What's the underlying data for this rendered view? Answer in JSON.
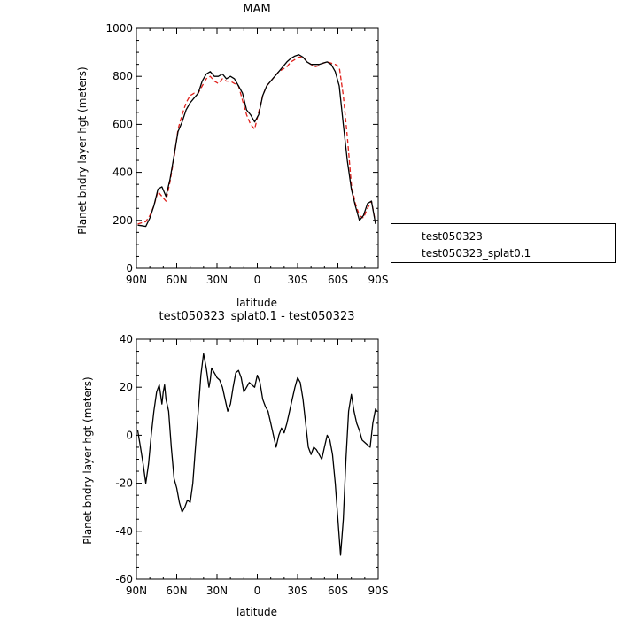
{
  "colors": {
    "red": "#e0201b",
    "black": "#000000"
  },
  "legend": {
    "items": [
      {
        "label": "test050323",
        "color": "#e0201b",
        "dash": true
      },
      {
        "label": "test050323_splat0.1",
        "color": "#000000",
        "dash": false
      }
    ]
  },
  "chart_data": [
    {
      "type": "line",
      "title": "MAM",
      "xlabel": "latitude",
      "ylabel": "Planet bndry layer hgt (meters)",
      "xlim": [
        90,
        -90
      ],
      "ylim": [
        0,
        1000
      ],
      "xticks": [
        90,
        60,
        30,
        0,
        -30,
        -60,
        -90
      ],
      "xtick_labels": [
        "90N",
        "60N",
        "30N",
        "0",
        "30S",
        "60S",
        "90S"
      ],
      "yticks": [
        0,
        200,
        400,
        600,
        800,
        1000
      ],
      "ytick_labels": [
        "0",
        "200",
        "400",
        "600",
        "800",
        "1000"
      ],
      "legend_position": "right",
      "series": [
        {
          "name": "test050323",
          "color": "#e0201b",
          "dash": true,
          "x": [
            89,
            86,
            83,
            80,
            77,
            74,
            71,
            68,
            65,
            62,
            59,
            56,
            53,
            50,
            47,
            44,
            41,
            38,
            35,
            32,
            29,
            26,
            23,
            20,
            17,
            14,
            11,
            8,
            5,
            2,
            -1,
            -4,
            -7,
            -10,
            -13,
            -16,
            -19,
            -22,
            -25,
            -28,
            -31,
            -34,
            -37,
            -40,
            -43,
            -46,
            -49,
            -52,
            -55,
            -58,
            -61,
            -64,
            -67,
            -70,
            -73,
            -76,
            -79,
            -82,
            -85,
            -88
          ],
          "y": [
            185,
            190,
            195,
            220,
            260,
            320,
            300,
            280,
            360,
            460,
            580,
            640,
            690,
            720,
            730,
            730,
            760,
            790,
            800,
            780,
            770,
            790,
            780,
            780,
            770,
            760,
            700,
            640,
            600,
            580,
            650,
            720,
            760,
            780,
            800,
            820,
            830,
            840,
            860,
            870,
            880,
            880,
            860,
            850,
            840,
            845,
            855,
            860,
            855,
            850,
            840,
            720,
            550,
            350,
            270,
            220,
            210,
            250,
            280,
            190
          ]
        },
        {
          "name": "test050323_splat0.1",
          "color": "#000000",
          "dash": false,
          "x": [
            89,
            86,
            83,
            80,
            77,
            74,
            71,
            68,
            65,
            62,
            59,
            56,
            53,
            50,
            47,
            44,
            41,
            38,
            35,
            32,
            29,
            26,
            23,
            20,
            17,
            14,
            11,
            8,
            5,
            2,
            -1,
            -4,
            -7,
            -10,
            -13,
            -16,
            -19,
            -22,
            -25,
            -28,
            -31,
            -34,
            -37,
            -40,
            -43,
            -46,
            -49,
            -52,
            -55,
            -58,
            -61,
            -64,
            -67,
            -70,
            -73,
            -76,
            -79,
            -82,
            -85,
            -88
          ],
          "y": [
            180,
            178,
            175,
            210,
            260,
            330,
            340,
            300,
            370,
            470,
            570,
            610,
            660,
            690,
            710,
            730,
            780,
            810,
            820,
            800,
            800,
            810,
            790,
            800,
            790,
            760,
            730,
            660,
            640,
            610,
            640,
            720,
            760,
            780,
            800,
            820,
            840,
            860,
            875,
            885,
            890,
            880,
            860,
            850,
            850,
            850,
            855,
            860,
            850,
            820,
            760,
            600,
            450,
            330,
            260,
            200,
            220,
            270,
            280,
            185
          ]
        }
      ]
    },
    {
      "type": "line",
      "title": "test050323_splat0.1 - test050323",
      "xlabel": "latitude",
      "ylabel": "Planet bndry layer hgt (meters)",
      "xlim": [
        90,
        -90
      ],
      "ylim": [
        -60,
        40
      ],
      "xticks": [
        90,
        60,
        30,
        0,
        -30,
        -60,
        -90
      ],
      "xtick_labels": [
        "90N",
        "60N",
        "30N",
        "0",
        "30S",
        "60S",
        "90S"
      ],
      "yticks": [
        -60,
        -40,
        -20,
        0,
        20,
        40
      ],
      "ytick_labels": [
        "-60",
        "-40",
        "-20",
        "0",
        "20",
        "40"
      ],
      "series": [
        {
          "color": "#000000",
          "dash": false,
          "x": [
            89,
            87,
            85,
            83,
            81,
            79,
            77,
            75,
            73,
            71,
            70,
            69,
            68,
            66,
            64,
            62,
            60,
            58,
            56,
            54,
            52,
            50,
            48,
            46,
            44,
            42,
            40,
            38,
            36,
            35,
            34,
            33,
            32,
            31,
            30,
            28,
            26,
            24,
            22,
            20,
            18,
            16,
            14,
            12,
            10,
            8,
            6,
            4,
            2,
            0,
            -2,
            -4,
            -6,
            -8,
            -10,
            -12,
            -14,
            -16,
            -18,
            -20,
            -22,
            -24,
            -26,
            -28,
            -30,
            -32,
            -34,
            -36,
            -38,
            -40,
            -42,
            -44,
            -46,
            -48,
            -50,
            -52,
            -54,
            -56,
            -58,
            -60,
            -62,
            -64,
            -66,
            -68,
            -70,
            -72,
            -74,
            -76,
            -78,
            -80,
            -82,
            -84,
            -86,
            -88,
            -89
          ],
          "y": [
            2,
            -5,
            -12,
            -20,
            -12,
            0,
            10,
            18,
            21,
            13,
            18,
            21,
            15,
            10,
            -5,
            -18,
            -22,
            -28,
            -32,
            -30,
            -27,
            -28,
            -20,
            -5,
            10,
            25,
            34,
            28,
            20,
            23,
            28,
            27,
            26,
            25,
            24,
            23,
            20,
            15,
            10,
            13,
            20,
            26,
            27,
            24,
            18,
            20,
            22,
            21,
            20,
            25,
            22,
            15,
            12,
            10,
            5,
            0,
            -5,
            0,
            3,
            1,
            5,
            10,
            15,
            20,
            24,
            22,
            15,
            5,
            -5,
            -8,
            -5,
            -6,
            -8,
            -10,
            -5,
            0,
            -2,
            -8,
            -20,
            -35,
            -50,
            -35,
            -10,
            10,
            17,
            10,
            5,
            2,
            -2,
            -3,
            -4,
            -5,
            5,
            11,
            10
          ]
        }
      ]
    }
  ]
}
